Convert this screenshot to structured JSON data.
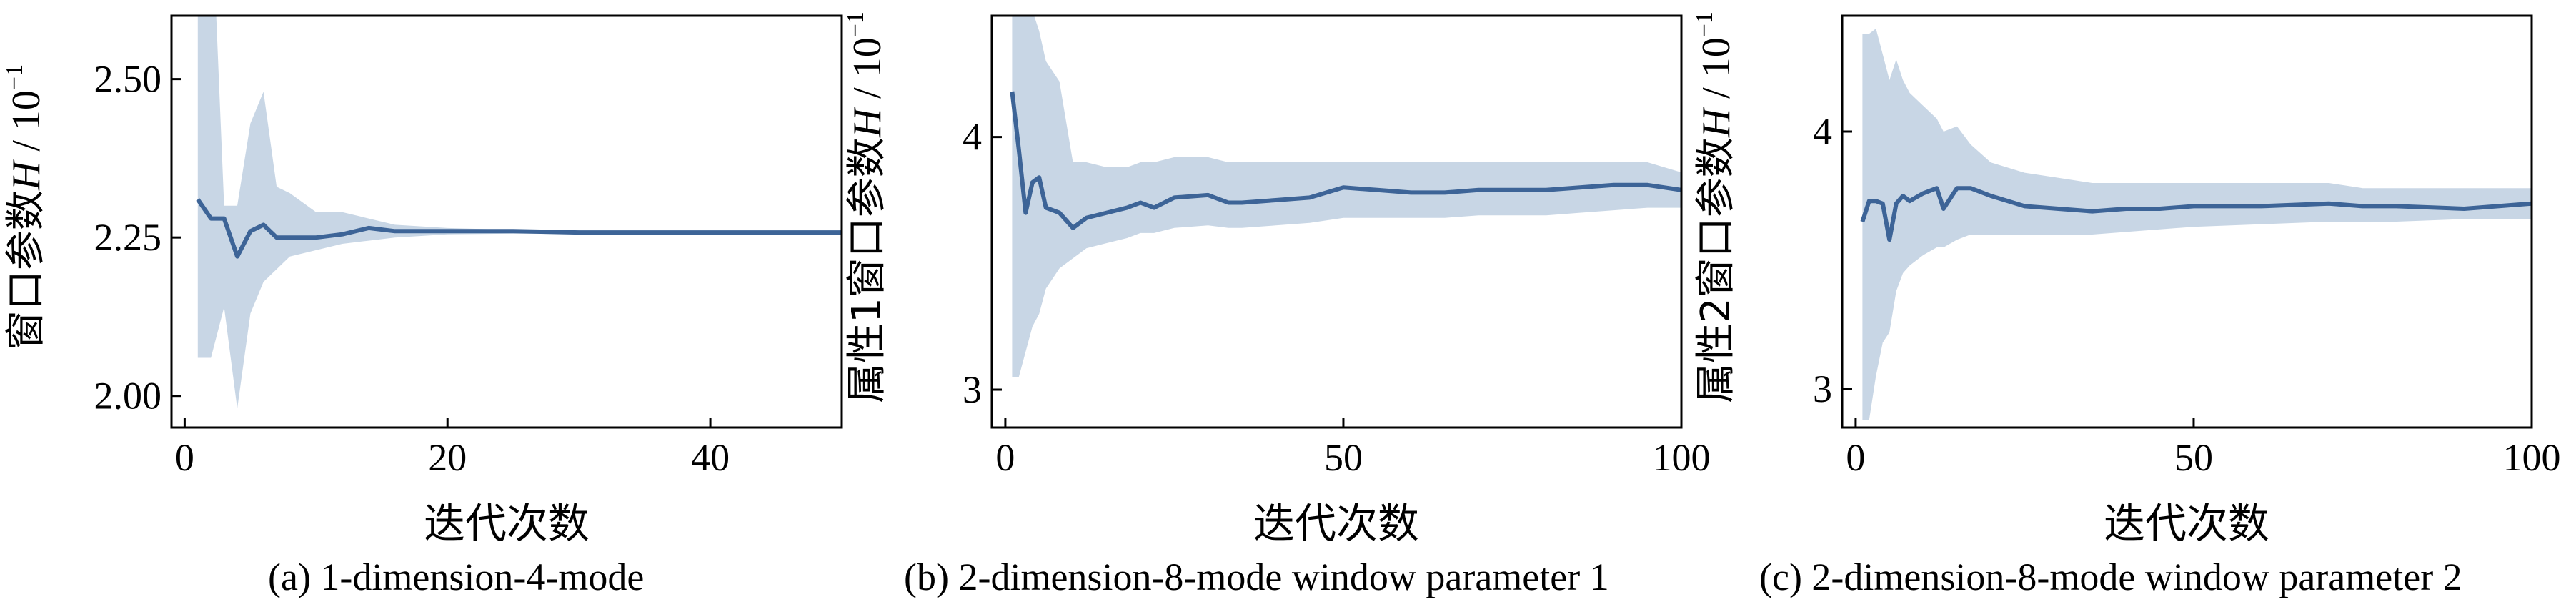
{
  "colors": {
    "line": "#3d6497",
    "band": "#c5d4e4",
    "axis": "#000000"
  },
  "chart_data": [
    {
      "type": "line",
      "caption": "(a) 1-dimension-4-mode",
      "xlabel": "迭代次数",
      "ylabel": "窗口参数",
      "ylabel_symbol": "H",
      "ylabel_unit": "10",
      "ylabel_unit_exp": "−1",
      "xlim": [
        -1,
        50
      ],
      "ylim": [
        1.95,
        2.6
      ],
      "xticks": [
        0,
        20,
        40
      ],
      "xtick_labels": [
        "0",
        "20",
        "40"
      ],
      "yticks": [
        2.0,
        2.25,
        2.5
      ],
      "ytick_labels": [
        "2.00",
        "2.25",
        "2.50"
      ],
      "series": [
        {
          "x": [
            1,
            2,
            3,
            4,
            5,
            6,
            7,
            8,
            10,
            12,
            14,
            16,
            20,
            25,
            30,
            35,
            40,
            45,
            50
          ],
          "y": [
            2.31,
            2.28,
            2.28,
            2.22,
            2.26,
            2.27,
            2.25,
            2.25,
            2.25,
            2.255,
            2.265,
            2.26,
            2.26,
            2.26,
            2.258,
            2.258,
            2.258,
            2.258,
            2.258
          ],
          "upper": [
            2.8,
            2.8,
            2.3,
            2.3,
            2.43,
            2.48,
            2.33,
            2.32,
            2.29,
            2.29,
            2.28,
            2.27,
            2.265,
            2.262,
            2.26,
            2.26,
            2.26,
            2.26,
            2.26
          ],
          "lower": [
            2.06,
            2.06,
            2.14,
            1.98,
            2.13,
            2.18,
            2.2,
            2.22,
            2.23,
            2.24,
            2.245,
            2.25,
            2.255,
            2.256,
            2.256,
            2.256,
            2.256,
            2.256,
            2.256
          ]
        }
      ]
    },
    {
      "type": "line",
      "caption": "(b) 2-dimension-8-mode window parameter 1",
      "xlabel": "迭代次数",
      "ylabel": "属性1窗口参数",
      "ylabel_symbol": "H",
      "ylabel_unit": "10",
      "ylabel_unit_exp": "−1",
      "xlim": [
        -2,
        100
      ],
      "ylim": [
        2.85,
        4.48
      ],
      "xticks": [
        0,
        50,
        100
      ],
      "xtick_labels": [
        "0",
        "50",
        "100"
      ],
      "yticks": [
        3,
        4
      ],
      "ytick_labels": [
        "3",
        "4"
      ],
      "series": [
        {
          "x": [
            1,
            2,
            3,
            4,
            5,
            6,
            8,
            10,
            12,
            15,
            18,
            20,
            22,
            25,
            30,
            33,
            35,
            40,
            45,
            50,
            55,
            60,
            65,
            70,
            75,
            80,
            85,
            90,
            95,
            100
          ],
          "y": [
            4.18,
            3.95,
            3.7,
            3.82,
            3.84,
            3.72,
            3.7,
            3.64,
            3.68,
            3.7,
            3.72,
            3.74,
            3.72,
            3.76,
            3.77,
            3.74,
            3.74,
            3.75,
            3.76,
            3.8,
            3.79,
            3.78,
            3.78,
            3.79,
            3.79,
            3.79,
            3.8,
            3.81,
            3.81,
            3.79
          ],
          "upper": [
            4.5,
            4.5,
            4.5,
            4.5,
            4.42,
            4.3,
            4.22,
            3.9,
            3.9,
            3.88,
            3.88,
            3.9,
            3.9,
            3.92,
            3.92,
            3.9,
            3.9,
            3.9,
            3.9,
            3.9,
            3.9,
            3.9,
            3.9,
            3.9,
            3.9,
            3.9,
            3.9,
            3.9,
            3.9,
            3.86
          ],
          "lower": [
            3.05,
            3.05,
            3.15,
            3.25,
            3.3,
            3.4,
            3.48,
            3.52,
            3.56,
            3.58,
            3.6,
            3.62,
            3.62,
            3.64,
            3.65,
            3.64,
            3.64,
            3.65,
            3.66,
            3.68,
            3.68,
            3.68,
            3.68,
            3.69,
            3.69,
            3.69,
            3.7,
            3.71,
            3.72,
            3.72
          ]
        }
      ]
    },
    {
      "type": "line",
      "caption": "(c) 2-dimension-8-mode window parameter 2",
      "xlabel": "迭代次数",
      "ylabel": "属性2窗口参数",
      "ylabel_symbol": "H",
      "ylabel_unit": "10",
      "ylabel_unit_exp": "−1",
      "xlim": [
        -2,
        100
      ],
      "ylim": [
        2.85,
        4.45
      ],
      "xticks": [
        0,
        50,
        100
      ],
      "xtick_labels": [
        "0",
        "50",
        "100"
      ],
      "yticks": [
        3,
        4
      ],
      "ytick_labels": [
        "3",
        "4"
      ],
      "series": [
        {
          "x": [
            1,
            2,
            3,
            4,
            5,
            6,
            7,
            8,
            10,
            12,
            13,
            15,
            17,
            20,
            25,
            30,
            35,
            40,
            45,
            50,
            60,
            70,
            75,
            80,
            90,
            95,
            100
          ],
          "y": [
            3.65,
            3.73,
            3.73,
            3.72,
            3.58,
            3.72,
            3.75,
            3.73,
            3.76,
            3.78,
            3.7,
            3.78,
            3.78,
            3.75,
            3.71,
            3.7,
            3.69,
            3.7,
            3.7,
            3.71,
            3.71,
            3.72,
            3.71,
            3.71,
            3.7,
            3.71,
            3.72
          ],
          "upper": [
            4.38,
            4.38,
            4.4,
            4.3,
            4.2,
            4.28,
            4.2,
            4.15,
            4.1,
            4.05,
            4.0,
            4.02,
            3.95,
            3.88,
            3.84,
            3.82,
            3.8,
            3.8,
            3.8,
            3.8,
            3.8,
            3.8,
            3.78,
            3.78,
            3.78,
            3.78,
            3.78
          ],
          "lower": [
            2.88,
            2.88,
            3.05,
            3.18,
            3.22,
            3.38,
            3.45,
            3.48,
            3.52,
            3.55,
            3.55,
            3.58,
            3.6,
            3.6,
            3.6,
            3.6,
            3.6,
            3.61,
            3.62,
            3.63,
            3.64,
            3.65,
            3.65,
            3.65,
            3.66,
            3.66,
            3.66
          ]
        }
      ]
    }
  ]
}
